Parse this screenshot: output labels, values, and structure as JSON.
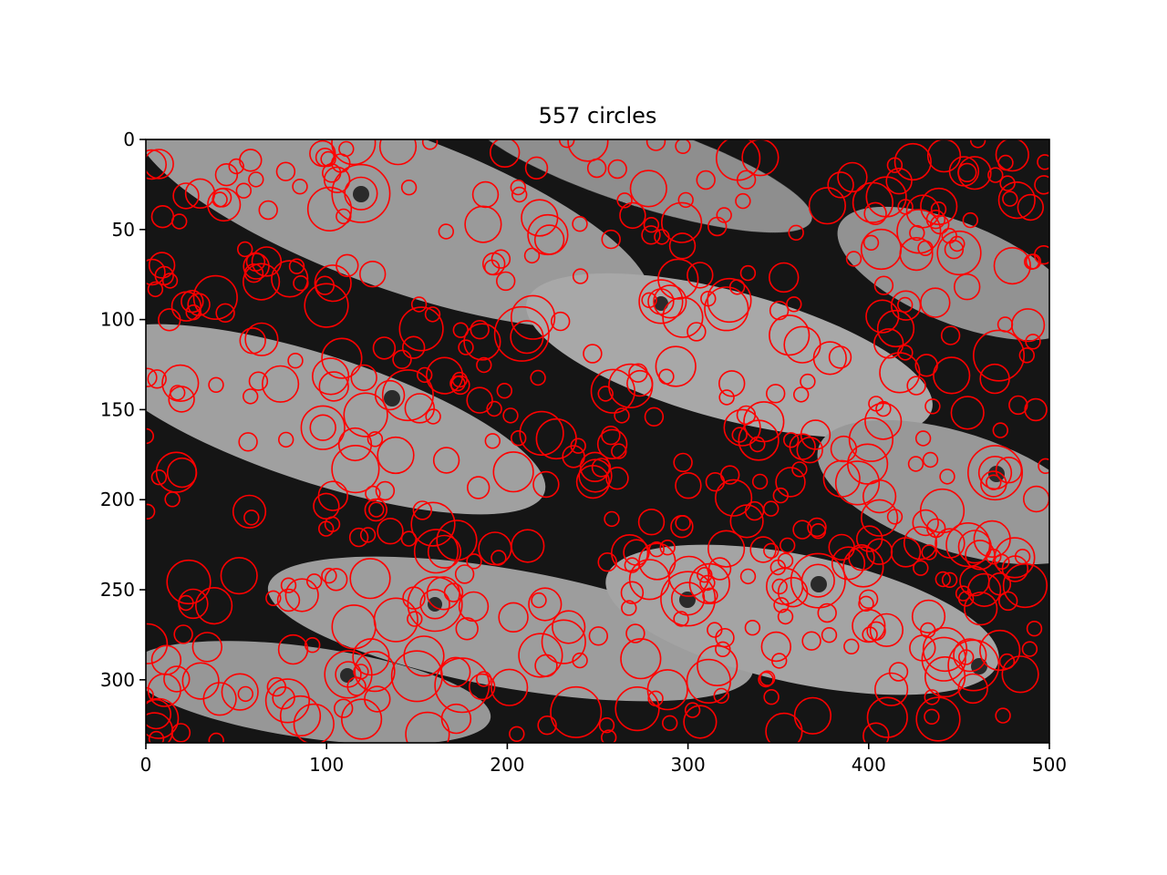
{
  "chart_data": {
    "type": "scatter",
    "title": "557 circles",
    "xlabel": "",
    "ylabel": "",
    "xlim": [
      0,
      500
    ],
    "ylim": [
      335,
      0
    ],
    "x_ticks": [
      0,
      100,
      200,
      300,
      400,
      500
    ],
    "y_ticks": [
      0,
      50,
      100,
      150,
      200,
      250,
      300
    ],
    "grid": false,
    "legend": "none",
    "marker": "hollow-circle",
    "circle_count": 557,
    "colors": {
      "circle": "#ff0000",
      "axes": "#000000",
      "background": "#ffffff",
      "image_dark": "#141414",
      "image_light": "#a8a8a8"
    },
    "background_image": "grayscale photo of a school of silver fish",
    "sample_circles": [
      {
        "x": 119,
        "y": 30,
        "r": 16
      },
      {
        "x": 119,
        "y": 30,
        "r": 9
      },
      {
        "x": 145,
        "y": 142,
        "r": 14
      },
      {
        "x": 135,
        "y": 142,
        "r": 8
      },
      {
        "x": 208,
        "y": 108,
        "r": 15
      },
      {
        "x": 285,
        "y": 90,
        "r": 12
      },
      {
        "x": 285,
        "y": 90,
        "r": 7
      },
      {
        "x": 300,
        "y": 255,
        "r": 15
      },
      {
        "x": 300,
        "y": 255,
        "r": 9
      },
      {
        "x": 372,
        "y": 245,
        "r": 15
      },
      {
        "x": 372,
        "y": 245,
        "r": 9
      },
      {
        "x": 470,
        "y": 185,
        "r": 15
      },
      {
        "x": 470,
        "y": 185,
        "r": 9
      },
      {
        "x": 458,
        "y": 292,
        "r": 14
      },
      {
        "x": 112,
        "y": 297,
        "r": 13
      },
      {
        "x": 112,
        "y": 297,
        "r": 7
      },
      {
        "x": 160,
        "y": 258,
        "r": 15
      },
      {
        "x": 160,
        "y": 258,
        "r": 8
      },
      {
        "x": 238,
        "y": 318,
        "r": 14
      },
      {
        "x": 175,
        "y": 303,
        "r": 15
      },
      {
        "x": 150,
        "y": 298,
        "r": 14
      },
      {
        "x": 98,
        "y": 160,
        "r": 12
      },
      {
        "x": 98,
        "y": 160,
        "r": 7
      },
      {
        "x": 116,
        "y": 183,
        "r": 13
      },
      {
        "x": 290,
        "y": 90,
        "r": 9
      },
      {
        "x": 472,
        "y": 120,
        "r": 14
      },
      {
        "x": 455,
        "y": 225,
        "r": 12
      },
      {
        "x": 415,
        "y": 105,
        "r": 10
      },
      {
        "x": 430,
        "y": 40,
        "r": 9
      },
      {
        "x": 340,
        "y": 10,
        "r": 10
      },
      {
        "x": 400,
        "y": 270,
        "r": 9
      },
      {
        "x": 330,
        "y": 160,
        "r": 10
      },
      {
        "x": 20,
        "y": 185,
        "r": 8
      },
      {
        "x": 30,
        "y": 30,
        "r": 8
      }
    ]
  }
}
